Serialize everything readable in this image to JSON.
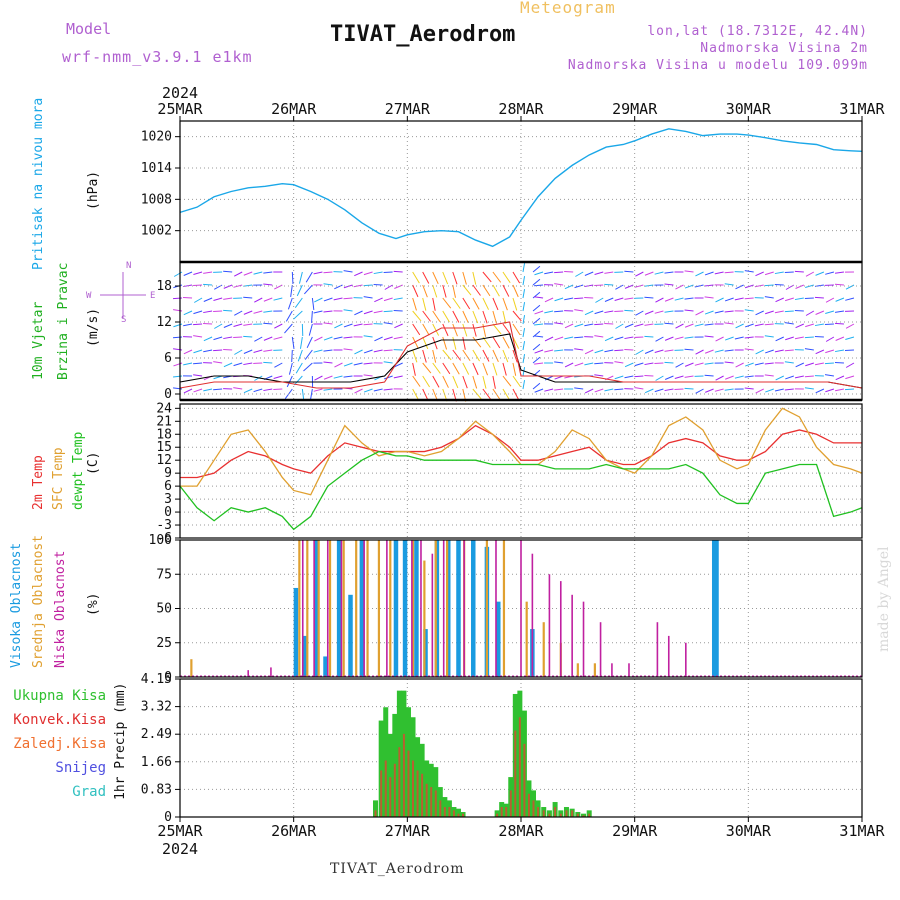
{
  "header": {
    "model_label": "Model",
    "model_name": "wrf-nmm_v3.9.1 e1km",
    "meteogram_label": "Meteogram",
    "title": "TIVAT_Aerodrom",
    "lonlat": "lon,lat (18.7312E, 42.4N)",
    "elevation": "Nadmorska Visina 2m",
    "model_elevation": "Nadmorska Visina u modelu 109.099m"
  },
  "footer": {
    "station": "TIVAT_Aerodrom",
    "credit": "made by Angel"
  },
  "time_axis": {
    "year": "2024",
    "dates": [
      "25MAR",
      "26MAR",
      "27MAR",
      "28MAR",
      "29MAR",
      "30MAR",
      "31MAR"
    ]
  },
  "colors": {
    "pressure": "#1aa7e8",
    "wind_speed": "#000000",
    "gust": "#e03030",
    "temp2m": "#e83030",
    "sfc_temp": "#e0a030",
    "dewpt": "#20c020",
    "cloud_high": "#1a9be0",
    "cloud_mid": "#e0a030",
    "cloud_low": "#c020a0",
    "precip_total": "#30c030",
    "precip_conv": "#e03030",
    "precip_frz": "#f07030",
    "snow": "#5050e0",
    "grad": "#30c0c0"
  },
  "chart_data": [
    {
      "type": "line",
      "title": "",
      "ylabel": "Pritisak na nivou mora",
      "unit": "(hPa)",
      "ylim": [
        996,
        1023
      ],
      "yticks": [
        1002,
        1008,
        1014,
        1020
      ],
      "x_unit": "days from 25MAR 00UTC",
      "series": [
        {
          "name": "Pritisak na nivou mora",
          "x": [
            0,
            0.15,
            0.3,
            0.45,
            0.6,
            0.75,
            0.9,
            1.0,
            1.15,
            1.3,
            1.45,
            1.6,
            1.75,
            1.9,
            2.0,
            2.15,
            2.3,
            2.45,
            2.6,
            2.75,
            2.9,
            3.0,
            3.15,
            3.3,
            3.45,
            3.6,
            3.75,
            3.9,
            4.0,
            4.15,
            4.3,
            4.45,
            4.6,
            4.75,
            4.9,
            5.0,
            5.15,
            5.3,
            5.45,
            5.6,
            5.75,
            5.9,
            6.0
          ],
          "values": [
            1005.5,
            1006.5,
            1008.5,
            1009.5,
            1010.2,
            1010.5,
            1011.0,
            1010.8,
            1009.5,
            1008.0,
            1006.0,
            1003.5,
            1001.5,
            1000.5,
            1001.2,
            1001.8,
            1002.0,
            1001.8,
            1000.2,
            999.0,
            1000.8,
            1004.0,
            1008.5,
            1012.0,
            1014.5,
            1016.5,
            1018.0,
            1018.5,
            1019.2,
            1020.5,
            1021.5,
            1021.0,
            1020.2,
            1020.5,
            1020.5,
            1020.3,
            1019.8,
            1019.2,
            1018.8,
            1018.5,
            1017.5,
            1017.3,
            1017.2
          ]
        }
      ]
    },
    {
      "type": "line",
      "title": "",
      "ylabel": "10m Vjetar Brzina i Pravac",
      "unit": "(m/s)",
      "direction_legend": [
        "N",
        "W",
        "E",
        "S"
      ],
      "ylim": [
        -1,
        22
      ],
      "yticks": [
        0,
        6,
        12,
        18
      ],
      "x_unit": "days from 25MAR 00UTC",
      "series": [
        {
          "name": "wind speed",
          "x": [
            0,
            0.3,
            0.6,
            0.9,
            1.2,
            1.5,
            1.8,
            2.0,
            2.3,
            2.6,
            2.9,
            3.0,
            3.3,
            3.6,
            3.9,
            4.2,
            4.5,
            4.8,
            5.1,
            5.4,
            5.7,
            6.0
          ],
          "values": [
            2,
            3,
            3,
            2,
            2,
            2,
            3,
            7,
            9,
            9,
            10,
            4,
            2,
            2,
            2,
            2,
            2,
            2,
            2,
            2,
            2,
            1
          ]
        },
        {
          "name": "gust",
          "x": [
            0,
            0.3,
            0.6,
            0.9,
            1.2,
            1.5,
            1.8,
            2.0,
            2.3,
            2.6,
            2.9,
            3.0,
            3.3,
            3.6,
            3.9,
            4.2,
            4.5,
            4.8,
            5.1,
            5.4,
            5.7,
            6.0
          ],
          "values": [
            1,
            2,
            2,
            2,
            1,
            1,
            2,
            8,
            11,
            11,
            12,
            3,
            3,
            3,
            2,
            2,
            2,
            2,
            2,
            2,
            2,
            1
          ]
        }
      ]
    },
    {
      "type": "line",
      "title": "",
      "ylabel": "2m Temp / SFC Temp / dewpt Temp",
      "unit": "(C)",
      "ylim": [
        -6,
        25
      ],
      "yticks": [
        -6,
        -3,
        0,
        3,
        6,
        9,
        12,
        15,
        18,
        21,
        24
      ],
      "x_unit": "days from 25MAR 00UTC",
      "series": [
        {
          "name": "2m Temp",
          "x": [
            0,
            0.15,
            0.3,
            0.45,
            0.6,
            0.75,
            0.9,
            1.0,
            1.15,
            1.3,
            1.45,
            1.6,
            1.75,
            1.9,
            2.0,
            2.15,
            2.3,
            2.45,
            2.6,
            2.75,
            2.9,
            3.0,
            3.15,
            3.3,
            3.45,
            3.6,
            3.75,
            3.9,
            4.0,
            4.15,
            4.3,
            4.45,
            4.6,
            4.75,
            4.9,
            5.0,
            5.15,
            5.3,
            5.45,
            5.6,
            5.75,
            5.9,
            6.0
          ],
          "values": [
            8,
            8,
            9,
            12,
            14,
            13,
            11,
            10,
            9,
            13,
            16,
            15,
            14,
            14,
            14,
            14,
            15,
            17,
            20,
            18,
            15,
            12,
            12,
            13,
            14,
            15,
            12,
            11,
            11,
            13,
            16,
            17,
            16,
            13,
            12,
            12,
            14,
            18,
            19,
            18,
            16,
            16,
            16
          ]
        },
        {
          "name": "SFC Temp",
          "x": [
            0,
            0.15,
            0.3,
            0.45,
            0.6,
            0.75,
            0.9,
            1.0,
            1.15,
            1.3,
            1.45,
            1.6,
            1.75,
            1.9,
            2.0,
            2.15,
            2.3,
            2.45,
            2.6,
            2.75,
            2.9,
            3.0,
            3.15,
            3.3,
            3.45,
            3.6,
            3.75,
            3.9,
            4.0,
            4.15,
            4.3,
            4.45,
            4.6,
            4.75,
            4.9,
            5.0,
            5.15,
            5.3,
            5.45,
            5.6,
            5.75,
            5.9,
            6.0
          ],
          "values": [
            6,
            6,
            12,
            18,
            19,
            14,
            8,
            5,
            4,
            12,
            20,
            16,
            13,
            14,
            14,
            13,
            14,
            17,
            21,
            18,
            14,
            11,
            11,
            14,
            19,
            17,
            12,
            10,
            9,
            13,
            20,
            22,
            19,
            12,
            10,
            11,
            19,
            24,
            22,
            15,
            11,
            10,
            9
          ]
        },
        {
          "name": "dewpt Temp",
          "x": [
            0,
            0.15,
            0.3,
            0.45,
            0.6,
            0.75,
            0.9,
            1.0,
            1.15,
            1.3,
            1.45,
            1.6,
            1.75,
            1.9,
            2.0,
            2.15,
            2.3,
            2.45,
            2.6,
            2.75,
            2.9,
            3.0,
            3.15,
            3.3,
            3.45,
            3.6,
            3.75,
            3.9,
            4.0,
            4.15,
            4.3,
            4.45,
            4.6,
            4.75,
            4.9,
            5.0,
            5.15,
            5.3,
            5.45,
            5.6,
            5.75,
            5.9,
            6.0
          ],
          "values": [
            6,
            1,
            -2,
            1,
            0,
            1,
            -1,
            -4,
            -1,
            6,
            9,
            12,
            14,
            13,
            13,
            12,
            12,
            12,
            12,
            11,
            11,
            11,
            11,
            10,
            10,
            10,
            11,
            10,
            10,
            10,
            10,
            11,
            9,
            4,
            2,
            2,
            9,
            10,
            11,
            11,
            -1,
            0,
            1
          ]
        }
      ]
    },
    {
      "type": "bar",
      "title": "",
      "ylabel": "Visoka Oblacnost / Srednja Oblacnost / Niska Oblacnost",
      "unit": "(%)",
      "ylim": [
        0,
        100
      ],
      "yticks": [
        0,
        25,
        50,
        75,
        100
      ],
      "x_unit": "days from 25MAR 00UTC",
      "series": [
        {
          "name": "Visoka Oblacnost",
          "x": [
            1.02,
            1.1,
            1.2,
            1.28,
            1.4,
            1.5,
            1.6,
            1.9,
            1.98,
            2.08,
            2.16,
            2.26,
            2.36,
            2.45,
            2.58,
            2.7,
            2.8,
            3.1,
            4.7,
            4.72,
            5.75
          ],
          "values": [
            65,
            30,
            100,
            15,
            100,
            60,
            100,
            100,
            100,
            100,
            35,
            100,
            100,
            100,
            100,
            95,
            55,
            35,
            100,
            100,
            0
          ]
        },
        {
          "name": "Srednja Oblacnost",
          "x": [
            0.1,
            1.05,
            1.12,
            1.22,
            1.32,
            1.44,
            1.55,
            1.65,
            1.75,
            1.85,
            2.05,
            2.15,
            2.25,
            2.35,
            2.5,
            2.7,
            2.85,
            3.05,
            3.2,
            3.35,
            3.5,
            3.65
          ],
          "values": [
            13,
            100,
            100,
            100,
            100,
            100,
            100,
            100,
            100,
            100,
            100,
            85,
            100,
            100,
            100,
            100,
            100,
            55,
            40,
            25,
            10,
            10
          ]
        },
        {
          "name": "Niska Oblacnost",
          "x": [
            0.6,
            0.8,
            1.08,
            1.18,
            1.3,
            1.42,
            1.62,
            1.82,
            2.04,
            2.12,
            2.22,
            2.32,
            2.5,
            2.78,
            3.0,
            3.1,
            3.25,
            3.35,
            3.45,
            3.55,
            3.7,
            3.8,
            3.95,
            4.2,
            4.3,
            4.45,
            4.9,
            5.3
          ],
          "values": [
            5,
            7,
            100,
            100,
            100,
            100,
            100,
            100,
            100,
            100,
            90,
            100,
            100,
            100,
            100,
            90,
            75,
            70,
            60,
            55,
            40,
            10,
            10,
            40,
            30,
            25,
            0,
            0
          ]
        }
      ]
    },
    {
      "type": "bar",
      "title": "",
      "ylabel": "1hr Precip",
      "unit": "(mm)",
      "legend": [
        "Ukupna Kisa",
        "Konvek.Kisa",
        "Zaledj.Kisa",
        "Snijeg",
        "Grad"
      ],
      "ylim": [
        0,
        4.15
      ],
      "yticks": [
        0,
        0.83,
        1.66,
        2.49,
        3.32,
        4.15
      ],
      "yticklabels": [
        "0",
        "0.83",
        "1.66",
        "2.49",
        "3.32",
        "4.15"
      ],
      "x_unit": "days from 25MAR 00UTC",
      "categories": [
        "1.72",
        "1.77",
        "1.81",
        "1.85",
        "1.89",
        "1.93",
        "1.97",
        "2.01",
        "2.05",
        "2.09",
        "2.13",
        "2.17",
        "2.21",
        "2.25",
        "2.29",
        "2.33",
        "2.37",
        "2.41",
        "2.45",
        "2.49",
        "2.79",
        "2.83",
        "2.87",
        "2.91",
        "2.95",
        "2.99",
        "3.03",
        "3.07",
        "3.11",
        "3.15",
        "3.20",
        "3.25",
        "3.30",
        "3.35",
        "3.40",
        "3.45",
        "3.50",
        "3.55",
        "3.60"
      ],
      "series": [
        {
          "name": "Ukupna Kisa",
          "values": [
            0.5,
            2.9,
            3.3,
            2.5,
            3.1,
            3.8,
            3.8,
            3.3,
            3.0,
            2.4,
            2.2,
            1.7,
            1.6,
            1.5,
            0.9,
            0.6,
            0.5,
            0.3,
            0.25,
            0.15,
            0.2,
            0.45,
            0.4,
            1.2,
            3.7,
            3.8,
            3.2,
            1.1,
            0.8,
            0.5,
            0.3,
            0.2,
            0.45,
            0.2,
            0.3,
            0.25,
            0.15,
            0.1,
            0.2
          ]
        },
        {
          "name": "Konvek.Kisa",
          "values": [
            0.2,
            1.4,
            1.7,
            1.2,
            1.6,
            2.1,
            2.5,
            2.0,
            1.7,
            1.4,
            1.3,
            1.0,
            0.9,
            0.8,
            0.5,
            0.3,
            0.3,
            0.2,
            0.1,
            0.1,
            0.1,
            0.3,
            0.3,
            0.8,
            2.6,
            3.0,
            2.2,
            0.7,
            0.5,
            0.3,
            0.2,
            0.1,
            0.3,
            0.1,
            0.2,
            0.2,
            0.1,
            0.05,
            0.1
          ]
        }
      ]
    }
  ]
}
